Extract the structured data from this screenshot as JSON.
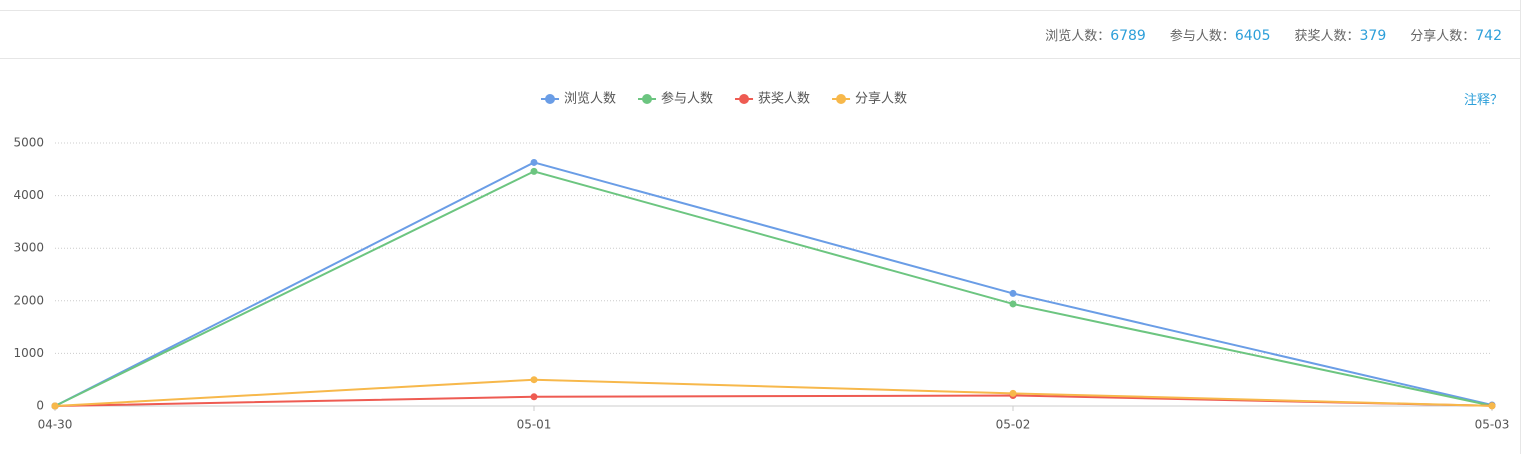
{
  "stats": [
    {
      "label": "浏览人数：",
      "value": 6789
    },
    {
      "label": "参与人数：",
      "value": 6405
    },
    {
      "label": "获奖人数：",
      "value": 379
    },
    {
      "label": "分享人数：",
      "value": 742
    }
  ],
  "note_link": "注释？",
  "chart_data": {
    "type": "line",
    "categories": [
      "04-30",
      "05-01",
      "05-02",
      "05-03"
    ],
    "series": [
      {
        "name": "浏览人数",
        "color": "#6a9de6",
        "values": [
          0,
          4630,
          2140,
          19
        ]
      },
      {
        "name": "参与人数",
        "color": "#6cc580",
        "values": [
          0,
          4460,
          1940,
          5
        ]
      },
      {
        "name": "获奖人数",
        "color": "#ee5b52",
        "values": [
          0,
          175,
          200,
          4
        ]
      },
      {
        "name": "分享人数",
        "color": "#f7b84b",
        "values": [
          0,
          500,
          240,
          2
        ]
      }
    ],
    "ylim": [
      0,
      5000
    ],
    "yticks": [
      0,
      1000,
      2000,
      3000,
      4000,
      5000
    ],
    "grid": true,
    "legend": "top"
  }
}
